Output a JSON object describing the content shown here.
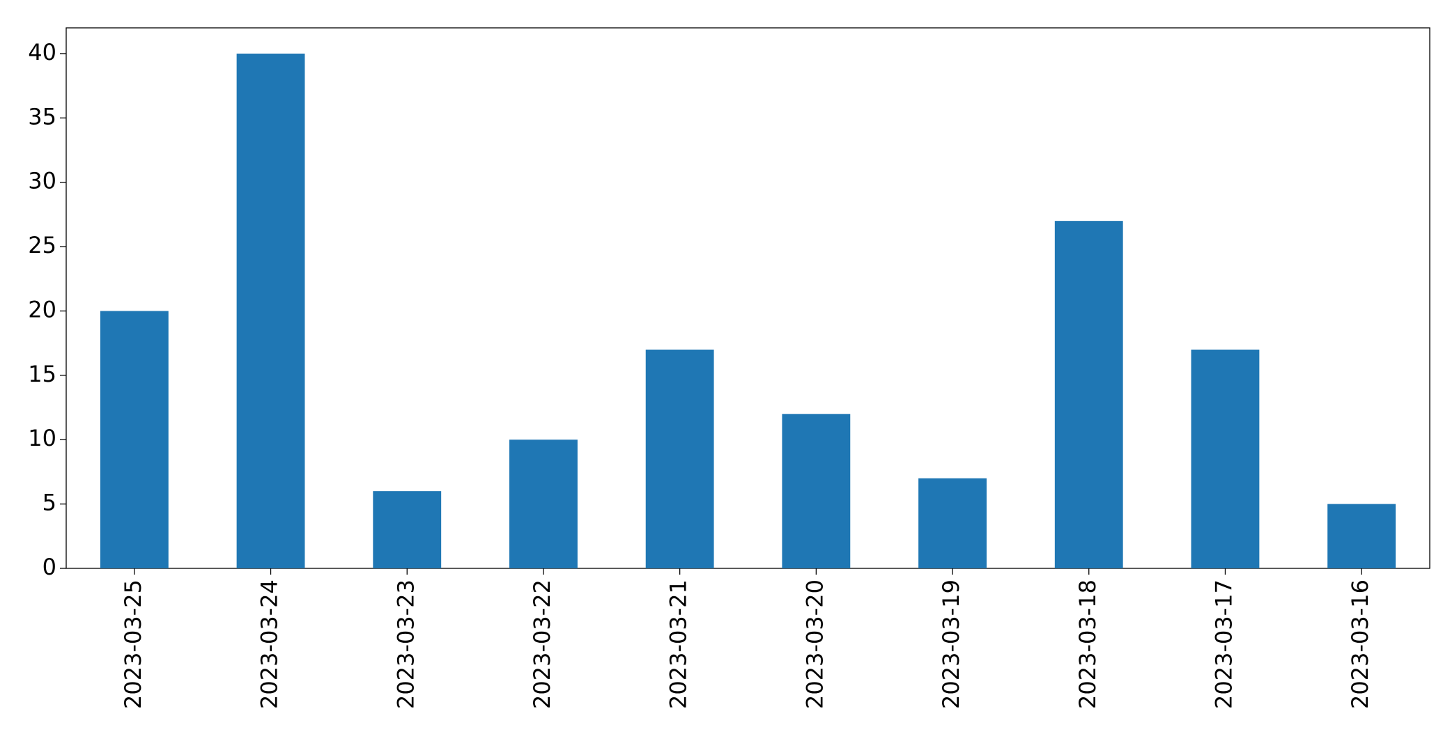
{
  "chart_data": {
    "type": "bar",
    "categories": [
      "2023-03-25",
      "2023-03-24",
      "2023-03-23",
      "2023-03-22",
      "2023-03-21",
      "2023-03-20",
      "2023-03-19",
      "2023-03-18",
      "2023-03-17",
      "2023-03-16"
    ],
    "values": [
      20,
      40,
      6,
      10,
      17,
      12,
      7,
      27,
      17,
      5
    ],
    "color": "#1f77b4",
    "ylim": [
      0,
      42
    ],
    "yticks": [
      0,
      5,
      10,
      15,
      20,
      25,
      30,
      35,
      40
    ],
    "grid": false
  }
}
